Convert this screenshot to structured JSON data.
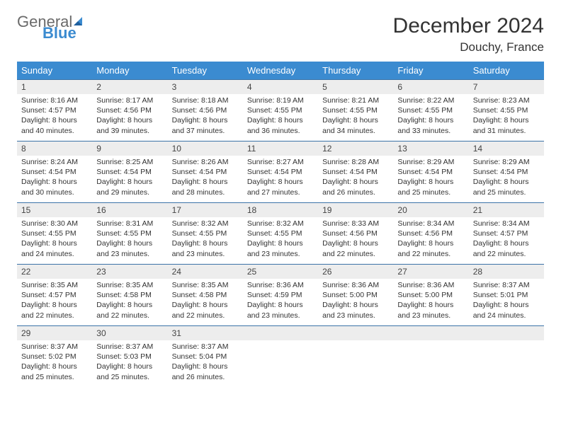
{
  "logo": {
    "text1": "General",
    "text2": "Blue"
  },
  "title": "December 2024",
  "location": "Douchy, France",
  "colors": {
    "header_bg": "#3b8bd0",
    "header_text": "#ffffff",
    "row_border": "#3b73a8",
    "daynum_bg": "#ededed",
    "logo_gray": "#6a6a6a",
    "logo_blue": "#3b8bd0"
  },
  "weekdays": [
    "Sunday",
    "Monday",
    "Tuesday",
    "Wednesday",
    "Thursday",
    "Friday",
    "Saturday"
  ],
  "weeks": [
    [
      {
        "n": "1",
        "sr": "8:16 AM",
        "ss": "4:57 PM",
        "dl": "8 hours and 40 minutes."
      },
      {
        "n": "2",
        "sr": "8:17 AM",
        "ss": "4:56 PM",
        "dl": "8 hours and 39 minutes."
      },
      {
        "n": "3",
        "sr": "8:18 AM",
        "ss": "4:56 PM",
        "dl": "8 hours and 37 minutes."
      },
      {
        "n": "4",
        "sr": "8:19 AM",
        "ss": "4:55 PM",
        "dl": "8 hours and 36 minutes."
      },
      {
        "n": "5",
        "sr": "8:21 AM",
        "ss": "4:55 PM",
        "dl": "8 hours and 34 minutes."
      },
      {
        "n": "6",
        "sr": "8:22 AM",
        "ss": "4:55 PM",
        "dl": "8 hours and 33 minutes."
      },
      {
        "n": "7",
        "sr": "8:23 AM",
        "ss": "4:55 PM",
        "dl": "8 hours and 31 minutes."
      }
    ],
    [
      {
        "n": "8",
        "sr": "8:24 AM",
        "ss": "4:54 PM",
        "dl": "8 hours and 30 minutes."
      },
      {
        "n": "9",
        "sr": "8:25 AM",
        "ss": "4:54 PM",
        "dl": "8 hours and 29 minutes."
      },
      {
        "n": "10",
        "sr": "8:26 AM",
        "ss": "4:54 PM",
        "dl": "8 hours and 28 minutes."
      },
      {
        "n": "11",
        "sr": "8:27 AM",
        "ss": "4:54 PM",
        "dl": "8 hours and 27 minutes."
      },
      {
        "n": "12",
        "sr": "8:28 AM",
        "ss": "4:54 PM",
        "dl": "8 hours and 26 minutes."
      },
      {
        "n": "13",
        "sr": "8:29 AM",
        "ss": "4:54 PM",
        "dl": "8 hours and 25 minutes."
      },
      {
        "n": "14",
        "sr": "8:29 AM",
        "ss": "4:54 PM",
        "dl": "8 hours and 25 minutes."
      }
    ],
    [
      {
        "n": "15",
        "sr": "8:30 AM",
        "ss": "4:55 PM",
        "dl": "8 hours and 24 minutes."
      },
      {
        "n": "16",
        "sr": "8:31 AM",
        "ss": "4:55 PM",
        "dl": "8 hours and 23 minutes."
      },
      {
        "n": "17",
        "sr": "8:32 AM",
        "ss": "4:55 PM",
        "dl": "8 hours and 23 minutes."
      },
      {
        "n": "18",
        "sr": "8:32 AM",
        "ss": "4:55 PM",
        "dl": "8 hours and 23 minutes."
      },
      {
        "n": "19",
        "sr": "8:33 AM",
        "ss": "4:56 PM",
        "dl": "8 hours and 22 minutes."
      },
      {
        "n": "20",
        "sr": "8:34 AM",
        "ss": "4:56 PM",
        "dl": "8 hours and 22 minutes."
      },
      {
        "n": "21",
        "sr": "8:34 AM",
        "ss": "4:57 PM",
        "dl": "8 hours and 22 minutes."
      }
    ],
    [
      {
        "n": "22",
        "sr": "8:35 AM",
        "ss": "4:57 PM",
        "dl": "8 hours and 22 minutes."
      },
      {
        "n": "23",
        "sr": "8:35 AM",
        "ss": "4:58 PM",
        "dl": "8 hours and 22 minutes."
      },
      {
        "n": "24",
        "sr": "8:35 AM",
        "ss": "4:58 PM",
        "dl": "8 hours and 22 minutes."
      },
      {
        "n": "25",
        "sr": "8:36 AM",
        "ss": "4:59 PM",
        "dl": "8 hours and 23 minutes."
      },
      {
        "n": "26",
        "sr": "8:36 AM",
        "ss": "5:00 PM",
        "dl": "8 hours and 23 minutes."
      },
      {
        "n": "27",
        "sr": "8:36 AM",
        "ss": "5:00 PM",
        "dl": "8 hours and 23 minutes."
      },
      {
        "n": "28",
        "sr": "8:37 AM",
        "ss": "5:01 PM",
        "dl": "8 hours and 24 minutes."
      }
    ],
    [
      {
        "n": "29",
        "sr": "8:37 AM",
        "ss": "5:02 PM",
        "dl": "8 hours and 25 minutes."
      },
      {
        "n": "30",
        "sr": "8:37 AM",
        "ss": "5:03 PM",
        "dl": "8 hours and 25 minutes."
      },
      {
        "n": "31",
        "sr": "8:37 AM",
        "ss": "5:04 PM",
        "dl": "8 hours and 26 minutes."
      },
      null,
      null,
      null,
      null
    ]
  ],
  "labels": {
    "sunrise": "Sunrise:",
    "sunset": "Sunset:",
    "daylight": "Daylight:"
  }
}
